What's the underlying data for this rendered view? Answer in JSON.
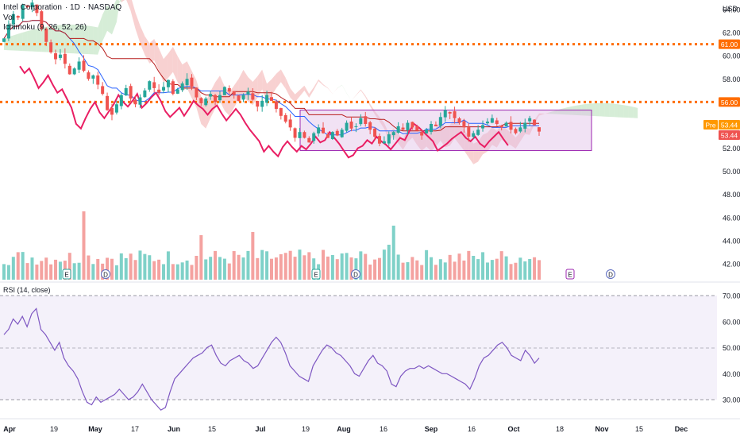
{
  "header": {
    "symbol": "Intel Corporation",
    "interval": "1D",
    "exchange": "NASDAQ",
    "volume_label": "Vol",
    "ichimoku_label": "Ichimoku (9, 26, 52, 26)",
    "currency": "USD"
  },
  "rsi_label": "RSI (14, close)",
  "badges": {
    "pre_label": "Pre",
    "pre_price": "53.44",
    "last_price": "53.44",
    "level_high": "61.00",
    "level_low": "56.00"
  },
  "markers": {
    "earnings": "E",
    "dividend": "D"
  },
  "colors": {
    "up": "#26a69a",
    "down": "#ef5350",
    "vol_up": "#7fd1c8",
    "vol_down": "#f4a2a0",
    "level": "#ff6d00",
    "box_fill": "#e1bee7",
    "box_stroke": "#9c27b0",
    "rsi": "#7e57c2",
    "tenkan": "#2962ff",
    "kijun": "#b71c1c",
    "lagging": "#e91e63",
    "cloud_bull": "#a5d6a7",
    "cloud_bear": "#ef9a9a"
  },
  "chart_data": [
    {
      "type": "candlestick",
      "title": "Intel Corporation, 1D, NASDAQ",
      "ylim": [
        40.5,
        64.5
      ],
      "y_ticks": [
        "42.00",
        "44.00",
        "46.00",
        "48.00",
        "50.00",
        "52.00",
        "54.00",
        "56.00",
        "58.00",
        "60.00",
        "62.00",
        "64.00"
      ],
      "x_ticks": [
        "Apr",
        "19",
        "May",
        "17",
        "Jun",
        "15",
        "Jul",
        "19",
        "Aug",
        "16",
        "Sep",
        "16",
        "Oct",
        "18",
        "Nov",
        "15",
        "Dec"
      ],
      "horizontal_levels": [
        61.0,
        56.0
      ],
      "range_box": {
        "price_top": 55.3,
        "price_bottom": 51.8
      },
      "close": [
        61.5,
        62.7,
        63.6,
        63.3,
        64.4,
        64.2,
        64.6,
        63.7,
        62.3,
        61.2,
        60.3,
        59.7,
        60.1,
        59.3,
        58.4,
        58.9,
        59.5,
        58.7,
        58.0,
        58.3,
        57.5,
        56.7,
        55.3,
        54.9,
        55.8,
        56.6,
        57.2,
        56.3,
        55.8,
        56.4,
        57.0,
        57.8,
        57.2,
        56.8,
        57.3,
        57.9,
        56.7,
        57.1,
        57.6,
        58.0,
        57.3,
        56.4,
        55.9,
        56.3,
        56.7,
        56.0,
        56.6,
        57.3,
        56.9,
        56.6,
        56.1,
        56.6,
        56.9,
        56.2,
        55.6,
        56.1,
        56.6,
        56.1,
        55.4,
        54.8,
        54.3,
        53.8,
        52.9,
        53.4,
        52.9,
        52.5,
        53.3,
        53.8,
        53.3,
        52.9,
        53.4,
        53.1,
        53.6,
        54.2,
        53.7,
        53.9,
        54.6,
        54.1,
        53.6,
        53.0,
        52.4,
        52.6,
        53.2,
        53.4,
        53.9,
        53.6,
        54.2,
        53.8,
        53.5,
        53.1,
        53.6,
        54.1,
        53.9,
        54.7,
        55.3,
        55.0,
        54.6,
        54.2,
        53.8,
        53.0,
        53.3,
        53.6,
        54.0,
        54.3,
        54.6,
        54.1,
        53.8,
        54.2,
        53.6,
        53.3,
        53.8,
        54.2,
        54.6,
        54.0,
        53.44
      ],
      "volume_note": "daily volume bars below price, no scale shown",
      "events": [
        {
          "type": "E",
          "x": "Apr 22"
        },
        {
          "type": "D",
          "x": "May 5"
        },
        {
          "type": "E",
          "x": "Jul 22"
        },
        {
          "type": "D",
          "x": "Aug 5"
        },
        {
          "type": "E",
          "x": "Oct 21 (upcoming)"
        },
        {
          "type": "D",
          "x": "Nov 5 (upcoming)"
        }
      ]
    },
    {
      "type": "line",
      "title": "RSI (14, close)",
      "ylim": [
        26,
        73
      ],
      "y_ticks": [
        "70.00",
        "60.00",
        "50.00",
        "40.00",
        "30.00"
      ],
      "bands": [
        70,
        50,
        30
      ],
      "values": [
        55,
        57,
        61,
        59,
        62,
        58,
        63,
        65,
        57,
        55,
        52,
        49,
        52,
        46,
        43,
        41,
        38,
        33,
        29,
        28,
        31,
        29,
        30,
        31,
        32,
        34,
        32,
        30,
        31,
        33,
        36,
        33,
        30,
        28,
        26,
        27,
        33,
        38,
        40,
        42,
        44,
        46,
        47,
        48,
        50,
        51,
        47,
        44,
        43,
        45,
        46,
        47,
        45,
        44,
        42,
        43,
        46,
        49,
        52,
        54,
        52,
        48,
        43,
        41,
        39,
        38,
        37,
        43,
        46,
        49,
        51,
        50,
        48,
        47,
        45,
        43,
        40,
        39,
        42,
        45,
        47,
        44,
        43,
        41,
        36,
        35,
        39,
        41,
        42,
        42,
        43,
        42,
        43,
        42,
        41,
        40,
        40,
        39,
        38,
        37,
        36,
        34,
        38,
        43,
        46,
        47,
        49,
        51,
        52,
        50,
        47,
        46,
        45,
        49,
        47,
        44,
        46
      ]
    }
  ]
}
